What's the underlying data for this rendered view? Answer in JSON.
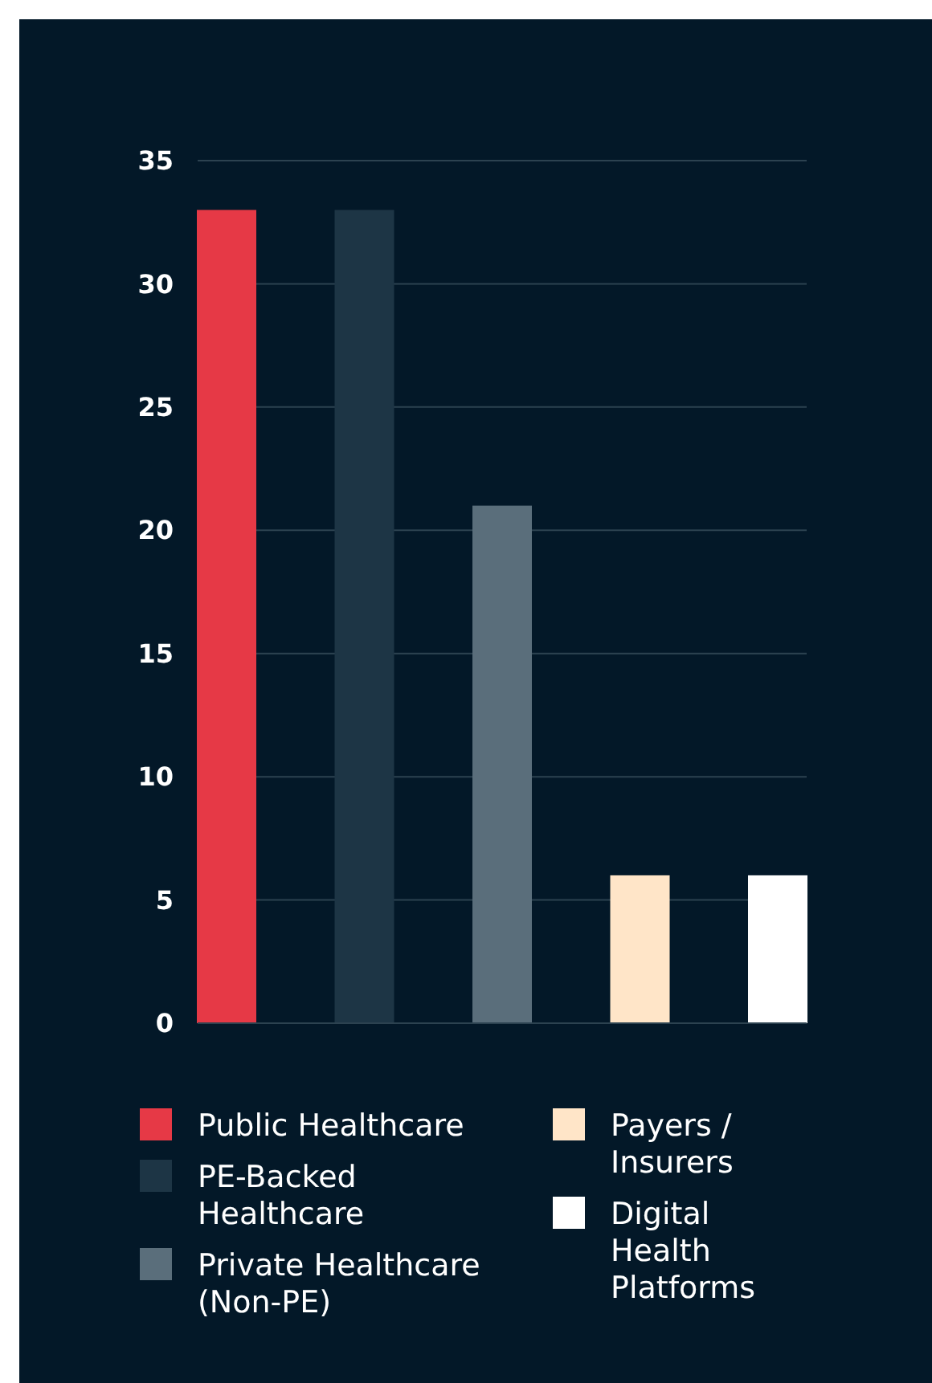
{
  "chart_data": {
    "type": "bar",
    "categories": [
      null,
      null,
      null,
      null,
      null
    ],
    "series": [
      {
        "name": "Public Healthcare",
        "color": "#e63946",
        "values": [
          33,
          null,
          null,
          null,
          null
        ]
      },
      {
        "name": "PE-Backed Healthcare",
        "color": "#1d3545",
        "values": [
          null,
          33,
          null,
          null,
          null
        ]
      },
      {
        "name": "Private Healthcare (Non-PE)",
        "color": "#5a6e7b",
        "values": [
          null,
          null,
          21,
          null,
          null
        ]
      },
      {
        "name": "Payers / Insurers",
        "color": "#ffe5c8",
        "values": [
          null,
          null,
          null,
          6,
          null
        ]
      },
      {
        "name": "Digital Health Platforms",
        "color": "#ffffff",
        "values": [
          null,
          null,
          null,
          null,
          6
        ]
      }
    ],
    "ylim": [
      0,
      35
    ],
    "yticks": [
      0,
      5,
      10,
      15,
      20,
      25,
      30,
      35
    ],
    "grid": "y",
    "legend": "bottom"
  }
}
